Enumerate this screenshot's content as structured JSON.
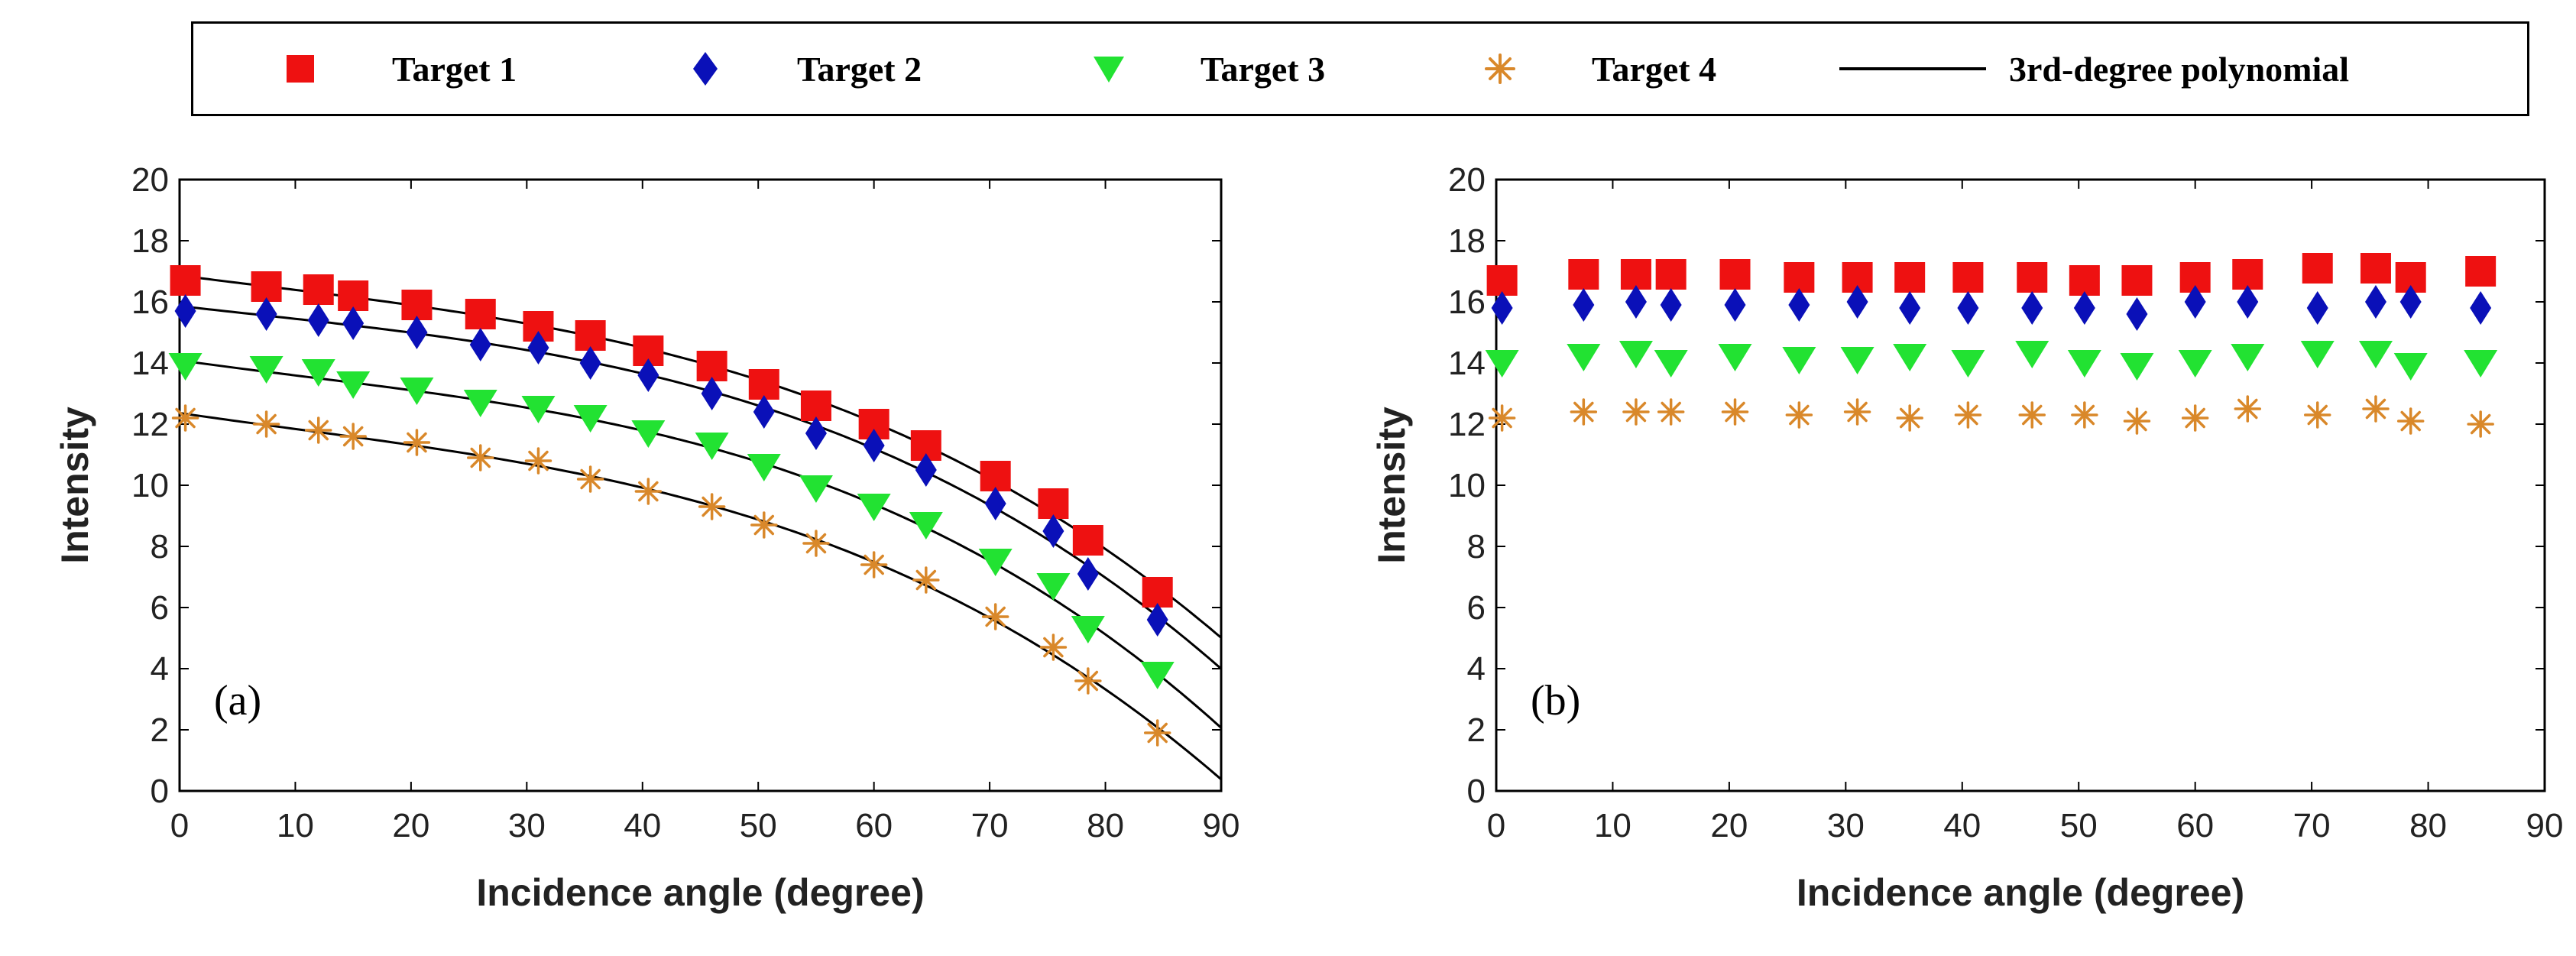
{
  "legend": {
    "items": [
      {
        "label": "Target 1",
        "marker": "square",
        "color": "#ee1111"
      },
      {
        "label": "Target 2",
        "marker": "diamond",
        "color": "#0a10b8"
      },
      {
        "label": "Target 3",
        "marker": "triangle-down",
        "color": "#22e232"
      },
      {
        "label": "Target 4",
        "marker": "asterisk",
        "color": "#d9882a"
      },
      {
        "label": "3rd-degree polynomial",
        "marker": "line",
        "color": "#000000"
      }
    ]
  },
  "chart_data": [
    {
      "type": "scatter",
      "panel_label": "(a)",
      "xlabel": "Incidence angle (degree)",
      "ylabel": "Intensity",
      "xlim": [
        0,
        90
      ],
      "ylim": [
        0,
        20
      ],
      "xticks": [
        0,
        10,
        20,
        30,
        40,
        50,
        60,
        70,
        80,
        90
      ],
      "yticks": [
        0,
        2,
        4,
        6,
        8,
        10,
        12,
        14,
        16,
        18,
        20
      ],
      "x": [
        0.5,
        7.5,
        12,
        15,
        20.5,
        26,
        31,
        35.5,
        40.5,
        46,
        50.5,
        55,
        60,
        64.5,
        70.5,
        75.5,
        78.5,
        84.5
      ],
      "series": [
        {
          "name": "Target 1",
          "values": [
            16.7,
            16.5,
            16.4,
            16.2,
            15.9,
            15.6,
            15.2,
            14.9,
            14.4,
            13.9,
            13.3,
            12.6,
            12.0,
            11.3,
            10.3,
            9.4,
            8.2,
            6.5
          ]
        },
        {
          "name": "Target 2",
          "values": [
            15.7,
            15.6,
            15.4,
            15.3,
            15.0,
            14.6,
            14.5,
            14.0,
            13.6,
            13.0,
            12.4,
            11.7,
            11.3,
            10.5,
            9.4,
            8.5,
            7.1,
            5.6
          ]
        },
        {
          "name": "Target 3",
          "values": [
            13.9,
            13.8,
            13.7,
            13.3,
            13.1,
            12.7,
            12.5,
            12.2,
            11.7,
            11.3,
            10.6,
            9.9,
            9.3,
            8.7,
            7.5,
            6.7,
            5.3,
            3.8
          ]
        },
        {
          "name": "Target 4",
          "values": [
            12.2,
            12.0,
            11.8,
            11.6,
            11.4,
            10.9,
            10.8,
            10.2,
            9.8,
            9.3,
            8.7,
            8.1,
            7.4,
            6.9,
            5.7,
            4.7,
            3.6,
            1.9
          ]
        }
      ],
      "fits": [
        {
          "name": "3rd-degree polynomial",
          "y_at_0": 16.9,
          "y_at_90": 5.0
        },
        {
          "name": "3rd-degree polynomial",
          "y_at_0": 15.9,
          "y_at_90": 4.0
        },
        {
          "name": "3rd-degree polynomial",
          "y_at_0": 14.1,
          "y_at_90": 2.0
        },
        {
          "name": "3rd-degree polynomial",
          "y_at_0": 12.4,
          "y_at_90": 0.4
        }
      ]
    },
    {
      "type": "scatter",
      "panel_label": "(b)",
      "xlabel": "Incidence angle (degree)",
      "ylabel": "Intensity",
      "xlim": [
        0,
        90
      ],
      "ylim": [
        0,
        20
      ],
      "xticks": [
        0,
        10,
        20,
        30,
        40,
        50,
        60,
        70,
        80,
        90
      ],
      "yticks": [
        0,
        2,
        4,
        6,
        8,
        10,
        12,
        14,
        16,
        18,
        20
      ],
      "x": [
        0.5,
        7.5,
        12,
        15,
        20.5,
        26,
        31,
        35.5,
        40.5,
        46,
        50.5,
        55,
        60,
        64.5,
        70.5,
        75.5,
        78.5,
        84.5
      ],
      "series": [
        {
          "name": "Target 1",
          "values": [
            16.7,
            16.9,
            16.9,
            16.9,
            16.9,
            16.8,
            16.8,
            16.8,
            16.8,
            16.8,
            16.7,
            16.7,
            16.8,
            16.9,
            17.1,
            17.1,
            16.8,
            17.0
          ]
        },
        {
          "name": "Target 2",
          "values": [
            15.8,
            15.9,
            16.0,
            15.9,
            15.9,
            15.9,
            16.0,
            15.8,
            15.8,
            15.8,
            15.8,
            15.6,
            16.0,
            16.0,
            15.8,
            16.0,
            16.0,
            15.8
          ]
        },
        {
          "name": "Target 3",
          "values": [
            14.0,
            14.2,
            14.3,
            14.0,
            14.2,
            14.1,
            14.1,
            14.2,
            14.0,
            14.3,
            14.0,
            13.9,
            14.0,
            14.2,
            14.3,
            14.3,
            13.9,
            14.0
          ]
        },
        {
          "name": "Target 4",
          "values": [
            12.2,
            12.4,
            12.4,
            12.4,
            12.4,
            12.3,
            12.4,
            12.2,
            12.3,
            12.3,
            12.3,
            12.1,
            12.2,
            12.5,
            12.3,
            12.5,
            12.1,
            12.0
          ]
        }
      ]
    }
  ]
}
